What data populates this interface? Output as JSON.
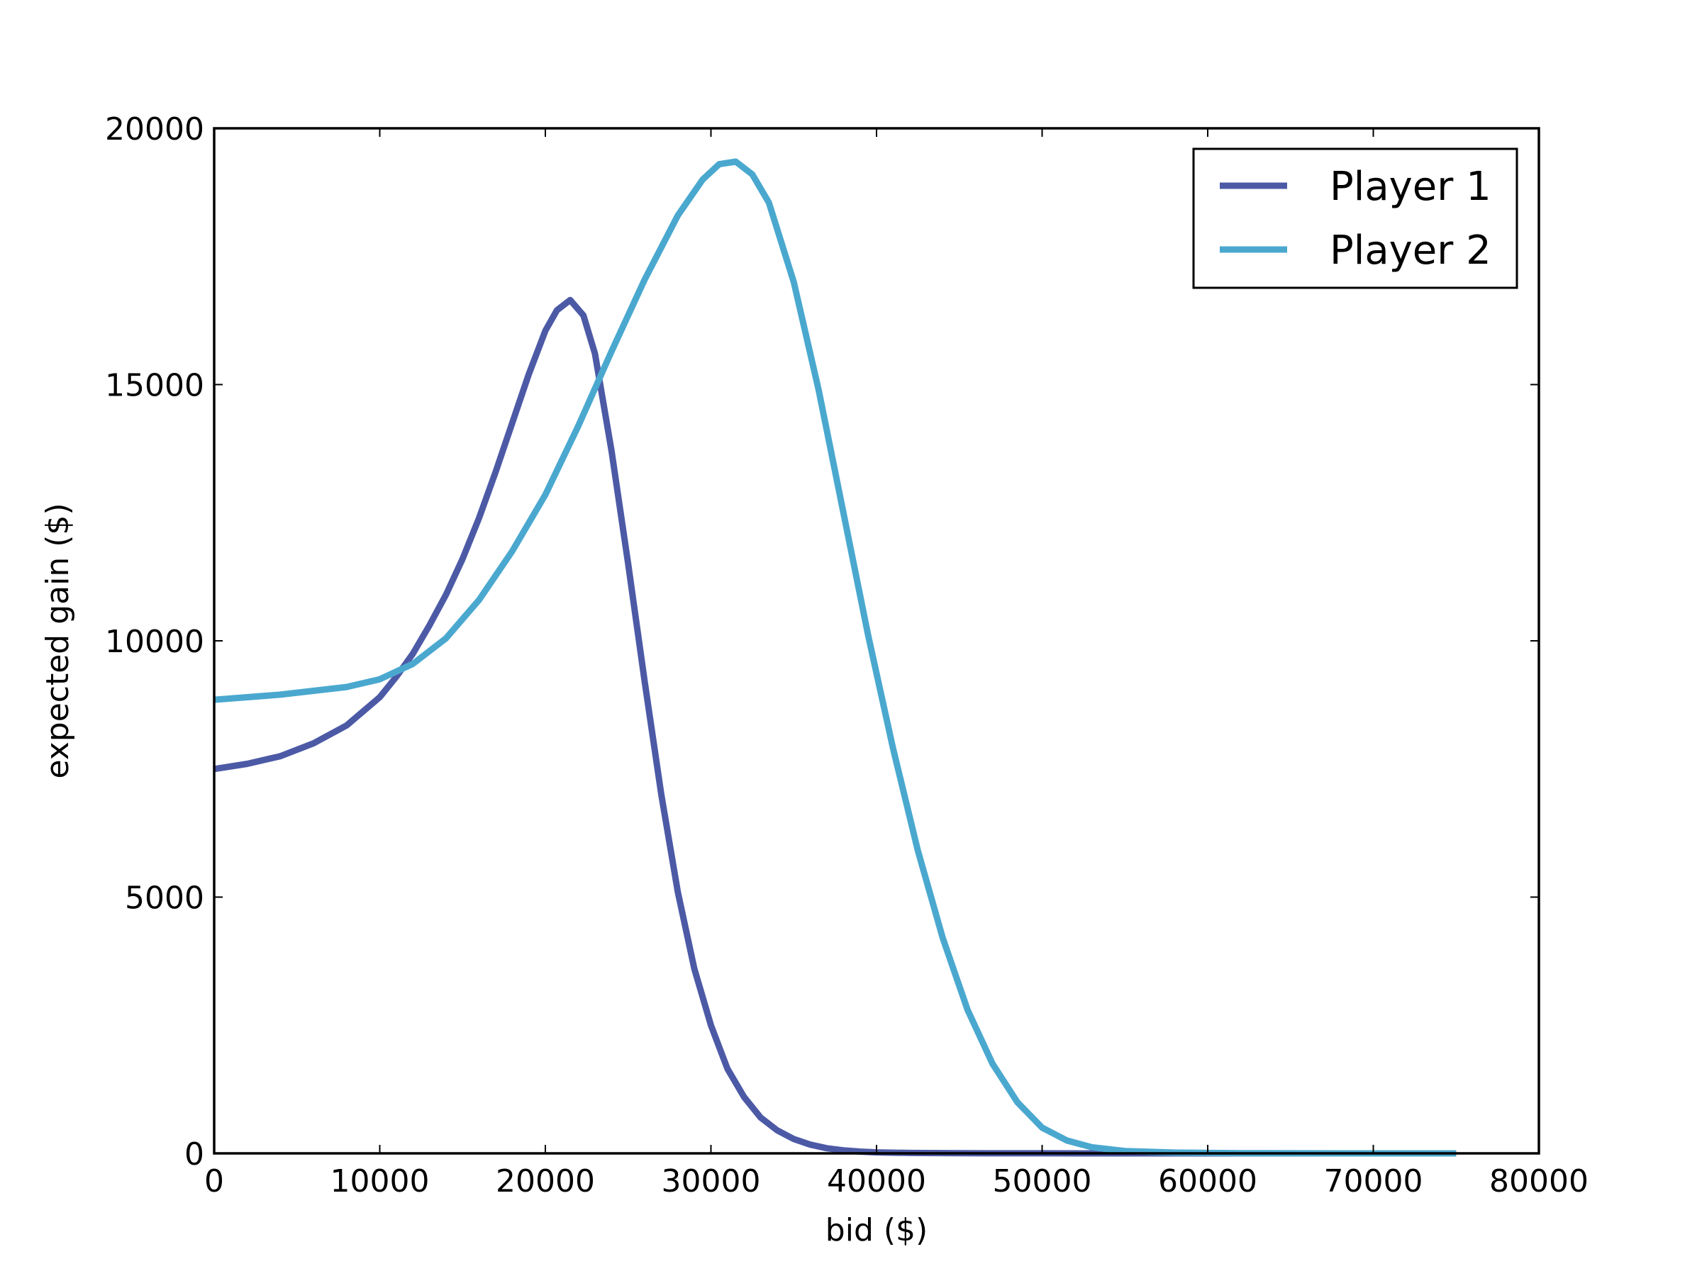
{
  "chart_data": {
    "type": "line",
    "title": "",
    "xlabel": "bid ($)",
    "ylabel": "expected gain ($)",
    "xlim": [
      0,
      80000
    ],
    "ylim": [
      0,
      20000
    ],
    "xticks": [
      0,
      10000,
      20000,
      30000,
      40000,
      50000,
      60000,
      70000,
      80000
    ],
    "yticks": [
      0,
      5000,
      10000,
      15000,
      20000
    ],
    "xtick_labels": [
      "0",
      "10000",
      "20000",
      "30000",
      "40000",
      "50000",
      "60000",
      "70000",
      "80000"
    ],
    "ytick_labels": [
      "0",
      "5000",
      "10000",
      "15000",
      "20000"
    ],
    "grid": false,
    "legend_position": "top-right",
    "series": [
      {
        "name": "Player 1",
        "color": "#4c5aa6",
        "x": [
          0,
          2000,
          4000,
          6000,
          8000,
          10000,
          11000,
          12000,
          13000,
          14000,
          15000,
          16000,
          17000,
          18000,
          19000,
          20000,
          20700,
          21500,
          22300,
          23000,
          24000,
          25000,
          26000,
          27000,
          28000,
          29000,
          30000,
          31000,
          32000,
          33000,
          34000,
          35000,
          36000,
          37000,
          38000,
          39000,
          40000,
          42000,
          45000,
          50000,
          55000,
          60000,
          65000,
          70000,
          75000
        ],
        "y": [
          7500,
          7600,
          7750,
          8000,
          8350,
          8900,
          9300,
          9750,
          10300,
          10900,
          11600,
          12400,
          13300,
          14250,
          15200,
          16050,
          16450,
          16650,
          16350,
          15600,
          13700,
          11500,
          9200,
          7000,
          5100,
          3600,
          2500,
          1650,
          1100,
          700,
          450,
          280,
          170,
          100,
          60,
          35,
          20,
          8,
          3,
          1,
          0,
          0,
          0,
          0,
          0
        ]
      },
      {
        "name": "Player 2",
        "color": "#4aa8cf",
        "x": [
          0,
          4000,
          8000,
          10000,
          12000,
          14000,
          16000,
          18000,
          20000,
          22000,
          24000,
          26000,
          28000,
          29500,
          30500,
          31500,
          32500,
          33500,
          35000,
          36500,
          38000,
          39500,
          41000,
          42500,
          44000,
          45500,
          47000,
          48500,
          50000,
          51500,
          53000,
          55000,
          58000,
          62000,
          66000,
          70000,
          75000
        ],
        "y": [
          8850,
          8950,
          9100,
          9250,
          9550,
          10050,
          10800,
          11750,
          12850,
          14200,
          15650,
          17050,
          18300,
          19000,
          19300,
          19350,
          19100,
          18550,
          17000,
          14900,
          12500,
          10100,
          7900,
          5900,
          4200,
          2800,
          1750,
          1000,
          500,
          250,
          120,
          45,
          15,
          4,
          1,
          0,
          0
        ]
      }
    ]
  }
}
